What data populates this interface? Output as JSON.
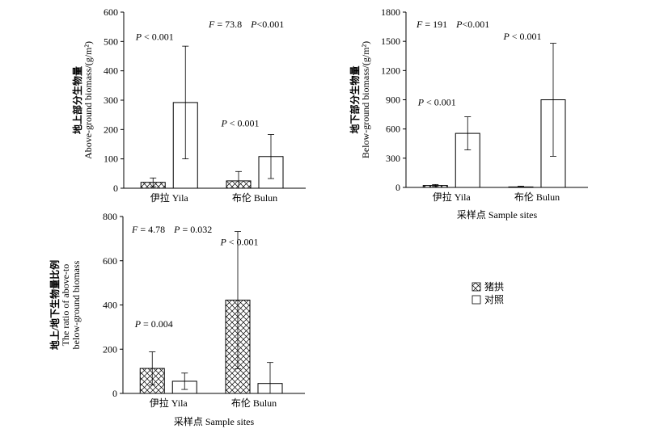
{
  "legend": [
    {
      "label": "猪拱",
      "pattern": "crosshatch"
    },
    {
      "label": "对照",
      "pattern": "open"
    }
  ],
  "chart_data": [
    {
      "type": "bar",
      "ylabel": [
        "地上部分生物量",
        "Above-ground biomass/(g/m²)"
      ],
      "xlabel": "",
      "ylim": [
        0,
        600
      ],
      "yticks": [
        0,
        100,
        200,
        300,
        400,
        500,
        600
      ],
      "categories": [
        "伊拉 Yila",
        "布伦 Bulun"
      ],
      "series": [
        {
          "name": "猪拱",
          "values": [
            20,
            25
          ],
          "error": [
            15,
            32
          ]
        },
        {
          "name": "对照",
          "values": [
            292,
            108
          ],
          "error": [
            192,
            75
          ]
        }
      ],
      "annotations": [
        {
          "p": "P",
          "text": " < 0.001",
          "anchor_category": 0,
          "anchor_value": 505
        },
        {
          "p": "P",
          "text": " < 0.001",
          "anchor_category": 1,
          "anchor_value": 210
        }
      ],
      "stat": {
        "f_label": "F",
        "f_value": " = 73.8",
        "p_label": "P",
        "p_value": "<0.001"
      }
    },
    {
      "type": "bar",
      "ylabel": [
        "地下部分生物量",
        "Below-ground biomass/(g/m²)"
      ],
      "xlabel": "采样点 Sample sites",
      "ylim": [
        0,
        1800
      ],
      "yticks": [
        0,
        300,
        600,
        900,
        1200,
        1500,
        1800
      ],
      "categories": [
        "伊拉 Yila",
        "布伦 Bulun"
      ],
      "series": [
        {
          "name": "猪拱",
          "values": [
            20,
            5
          ],
          "error": [
            10,
            8
          ]
        },
        {
          "name": "对照",
          "values": [
            555,
            900
          ],
          "error": [
            170,
            580
          ]
        }
      ],
      "annotations": [
        {
          "p": "P",
          "text": " < 0.001",
          "anchor_category": 0,
          "anchor_value": 840
        },
        {
          "p": "P",
          "text": " < 0.001",
          "anchor_category": 1,
          "anchor_value": 1520
        }
      ],
      "stat": {
        "f_label": "F",
        "f_value": " = 191",
        "p_label": "P",
        "p_value": "<0.001"
      }
    },
    {
      "type": "bar",
      "ylabel": [
        "地上/地下生物量比例",
        "The ratio of above-to",
        "below-ground biomass"
      ],
      "xlabel": "采样点 Sample sites",
      "ylim": [
        0,
        800
      ],
      "yticks": [
        0,
        200,
        400,
        600,
        800
      ],
      "categories": [
        "伊拉 Yila",
        "布伦 Bulun"
      ],
      "series": [
        {
          "name": "猪拱",
          "values": [
            113,
            422
          ],
          "error": [
            75,
            310
          ]
        },
        {
          "name": "对照",
          "values": [
            55,
            45
          ],
          "error": [
            37,
            95
          ]
        }
      ],
      "annotations": [
        {
          "p": "P",
          "text": " = 0.004",
          "anchor_category": 0,
          "anchor_value": 300
        },
        {
          "p": "P",
          "text": " < 0.001",
          "anchor_category": 1,
          "anchor_value": 670
        }
      ],
      "stat": {
        "f_label": "F",
        "f_value": " = 4.78",
        "p_label": "P",
        "p_value": " = 0.032"
      }
    }
  ]
}
